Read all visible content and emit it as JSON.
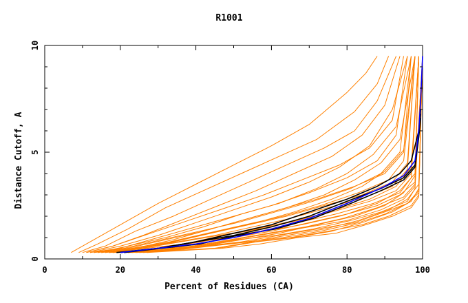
{
  "chart_data": {
    "type": "line",
    "title": "R1001",
    "xlabel": "Percent of Residues (CA)",
    "ylabel": "Distance Cutoff, A",
    "xlim": [
      0,
      100
    ],
    "ylim": [
      0,
      10
    ],
    "x_ticks": [
      "0",
      "20",
      "40",
      "60",
      "80",
      "100"
    ],
    "y_ticks": [
      "0",
      "5",
      "10"
    ],
    "grid": false,
    "legend": "none",
    "colors": {
      "models": "#ff8000",
      "highlight": "#000000",
      "reference": "#0000ff"
    },
    "series_groups": [
      {
        "role": "background",
        "color": "#ff8000",
        "series": [
          {
            "x": [
              7,
              12,
              20,
              30,
              40,
              50,
              60,
              70,
              80,
              85,
              88
            ],
            "y": [
              0.3,
              0.8,
              1.6,
              2.6,
              3.5,
              4.4,
              5.3,
              6.3,
              7.8,
              8.7,
              9.5
            ]
          },
          {
            "x": [
              9,
              14,
              22,
              32,
              42,
              52,
              62,
              72,
              82,
              88,
              91
            ],
            "y": [
              0.3,
              0.7,
              1.4,
              2.4,
              3.2,
              4.0,
              4.8,
              5.6,
              6.9,
              8.2,
              9.5
            ]
          },
          {
            "x": [
              10,
              16,
              24,
              34,
              44,
              54,
              64,
              74,
              82,
              88,
              93
            ],
            "y": [
              0.3,
              0.6,
              1.3,
              2.0,
              2.8,
              3.6,
              4.4,
              5.2,
              6.0,
              7.4,
              9.5
            ]
          },
          {
            "x": [
              11,
              18,
              28,
              38,
              48,
              58,
              68,
              78,
              86,
              92,
              95
            ],
            "y": [
              0.3,
              0.6,
              1.2,
              1.8,
              2.4,
              3.0,
              3.7,
              4.4,
              5.2,
              6.5,
              9.5
            ]
          },
          {
            "x": [
              12,
              20,
              30,
              40,
              50,
              60,
              70,
              80,
              88,
              93,
              96
            ],
            "y": [
              0.3,
              0.5,
              1.0,
              1.5,
              2.0,
              2.5,
              3.1,
              3.8,
              4.6,
              5.8,
              9.5
            ]
          },
          {
            "x": [
              13,
              22,
              32,
              42,
              52,
              62,
              72,
              82,
              90,
              95,
              97
            ],
            "y": [
              0.3,
              0.5,
              0.9,
              1.3,
              1.8,
              2.3,
              2.8,
              3.4,
              4.0,
              5.0,
              9.5
            ]
          },
          {
            "x": [
              14,
              24,
              34,
              44,
              54,
              64,
              74,
              84,
              92,
              96,
              98
            ],
            "y": [
              0.3,
              0.5,
              0.8,
              1.2,
              1.6,
              2.0,
              2.5,
              3.0,
              3.6,
              4.5,
              9.5
            ]
          },
          {
            "x": [
              15,
              25,
              35,
              45,
              55,
              65,
              75,
              85,
              92,
              96,
              98
            ],
            "y": [
              0.3,
              0.5,
              0.8,
              1.1,
              1.5,
              1.9,
              2.4,
              2.9,
              3.4,
              4.2,
              9.5
            ]
          },
          {
            "x": [
              16,
              26,
              36,
              46,
              56,
              66,
              76,
              86,
              93,
              97,
              99
            ],
            "y": [
              0.3,
              0.5,
              0.8,
              1.1,
              1.4,
              1.8,
              2.2,
              2.7,
              3.2,
              4.0,
              9.5
            ]
          },
          {
            "x": [
              17,
              27,
              37,
              47,
              57,
              67,
              77,
              87,
              94,
              97,
              99
            ],
            "y": [
              0.3,
              0.4,
              0.7,
              1.0,
              1.3,
              1.7,
              2.1,
              2.6,
              3.1,
              3.8,
              9.5
            ]
          },
          {
            "x": [
              18,
              28,
              38,
              48,
              58,
              68,
              78,
              88,
              94,
              98,
              99
            ],
            "y": [
              0.3,
              0.4,
              0.7,
              1.0,
              1.3,
              1.6,
              2.0,
              2.5,
              3.0,
              3.6,
              9.5
            ]
          },
          {
            "x": [
              19,
              29,
              39,
              49,
              59,
              69,
              79,
              88,
              95,
              98,
              99
            ],
            "y": [
              0.3,
              0.4,
              0.6,
              0.9,
              1.2,
              1.5,
              1.9,
              2.4,
              2.9,
              3.5,
              9.5
            ]
          },
          {
            "x": [
              20,
              30,
              40,
              50,
              60,
              70,
              80,
              89,
              95,
              98,
              100
            ],
            "y": [
              0.3,
              0.4,
              0.6,
              0.9,
              1.2,
              1.5,
              1.8,
              2.3,
              2.8,
              3.4,
              9.5
            ]
          },
          {
            "x": [
              21,
              31,
              41,
              51,
              61,
              71,
              81,
              89,
              96,
              98,
              100
            ],
            "y": [
              0.3,
              0.4,
              0.6,
              0.9,
              1.1,
              1.4,
              1.8,
              2.2,
              2.7,
              3.3,
              9.5
            ]
          },
          {
            "x": [
              22,
              32,
              42,
              52,
              62,
              72,
              82,
              90,
              96,
              99,
              100
            ],
            "y": [
              0.3,
              0.4,
              0.6,
              0.8,
              1.1,
              1.4,
              1.7,
              2.2,
              2.6,
              3.2,
              9.5
            ]
          },
          {
            "x": [
              23,
              33,
              43,
              53,
              63,
              73,
              83,
              90,
              96,
              99,
              100
            ],
            "y": [
              0.3,
              0.4,
              0.6,
              0.8,
              1.0,
              1.3,
              1.7,
              2.1,
              2.6,
              3.1,
              9.5
            ]
          },
          {
            "x": [
              25,
              35,
              45,
              55,
              65,
              75,
              84,
              91,
              97,
              99,
              100
            ],
            "y": [
              0.3,
              0.4,
              0.5,
              0.8,
              1.0,
              1.3,
              1.6,
              2.0,
              2.5,
              3.0,
              9.5
            ]
          },
          {
            "x": [
              27,
              37,
              47,
              57,
              67,
              77,
              85,
              92,
              97,
              99,
              100
            ],
            "y": [
              0.3,
              0.4,
              0.5,
              0.7,
              1.0,
              1.2,
              1.6,
              2.0,
              2.4,
              2.9,
              9.5
            ]
          },
          {
            "x": [
              12,
              20,
              30,
              40,
              50,
              60,
              70,
              78,
              86,
              92,
              96
            ],
            "y": [
              0.3,
              0.6,
              1.1,
              1.7,
              2.3,
              2.9,
              3.6,
              4.3,
              5.3,
              7.0,
              9.5
            ]
          },
          {
            "x": [
              14,
              22,
              32,
              42,
              52,
              62,
              72,
              80,
              87,
              93,
              97
            ],
            "y": [
              0.3,
              0.6,
              1.0,
              1.5,
              2.1,
              2.6,
              3.3,
              4.0,
              4.9,
              6.2,
              9.5
            ]
          },
          {
            "x": [
              16,
              24,
              34,
              44,
              54,
              64,
              74,
              82,
              89,
              94,
              98
            ],
            "y": [
              0.3,
              0.5,
              0.9,
              1.4,
              1.9,
              2.4,
              3.0,
              3.7,
              4.5,
              5.6,
              9.5
            ]
          },
          {
            "x": [
              18,
              26,
              36,
              46,
              56,
              66,
              76,
              84,
              90,
              95,
              98
            ],
            "y": [
              0.3,
              0.5,
              0.9,
              1.3,
              1.7,
              2.2,
              2.8,
              3.4,
              4.1,
              5.1,
              9.5
            ]
          },
          {
            "x": [
              13,
              21,
              31,
              41,
              51,
              61,
              71,
              81,
              89,
              94,
              97
            ],
            "y": [
              0.3,
              0.5,
              0.9,
              1.3,
              1.7,
              2.2,
              2.7,
              3.3,
              4.0,
              5.0,
              9.5
            ]
          },
          {
            "x": [
              15,
              23,
              33,
              43,
              53,
              63,
              73,
              83,
              91,
              95,
              98
            ],
            "y": [
              0.3,
              0.5,
              0.8,
              1.2,
              1.6,
              2.0,
              2.5,
              3.1,
              3.7,
              4.6,
              9.5
            ]
          },
          {
            "x": [
              20,
              30,
              40,
              50,
              60,
              70,
              80,
              88,
              94,
              98,
              99
            ],
            "y": [
              0.3,
              0.4,
              0.7,
              1.0,
              1.3,
              1.7,
              2.1,
              2.6,
              3.2,
              4.0,
              9.5
            ]
          },
          {
            "x": [
              22,
              32,
              42,
              52,
              62,
              72,
              82,
              90,
              95,
              98,
              99
            ],
            "y": [
              0.3,
              0.4,
              0.6,
              0.9,
              1.2,
              1.6,
              2.0,
              2.5,
              3.1,
              3.9,
              9.5
            ]
          },
          {
            "x": [
              11,
              18,
              26,
              36,
              46,
              56,
              66,
              76,
              84,
              90,
              94
            ],
            "y": [
              0.3,
              0.6,
              1.1,
              1.8,
              2.5,
              3.2,
              4.0,
              4.8,
              5.8,
              7.2,
              9.5
            ]
          },
          {
            "x": [
              24,
              34,
              44,
              54,
              64,
              74,
              83,
              91,
              96,
              99,
              100
            ],
            "y": [
              0.3,
              0.4,
              0.6,
              0.8,
              1.1,
              1.4,
              1.8,
              2.3,
              2.8,
              3.5,
              9.5
            ]
          },
          {
            "x": [
              26,
              36,
              46,
              56,
              66,
              76,
              84,
              92,
              97,
              99,
              100
            ],
            "y": [
              0.3,
              0.4,
              0.5,
              0.8,
              1.0,
              1.3,
              1.7,
              2.2,
              2.7,
              3.3,
              9.5
            ]
          },
          {
            "x": [
              17,
              27,
              37,
              47,
              57,
              67,
              77,
              86,
              93,
              97,
              99
            ],
            "y": [
              0.3,
              0.5,
              0.7,
              1.1,
              1.4,
              1.8,
              2.3,
              2.8,
              3.4,
              4.3,
              9.5
            ]
          }
        ]
      },
      {
        "role": "highlight",
        "color": "#000000",
        "series": [
          {
            "x": [
              19,
              30,
              40,
              50,
              60,
              70,
              80,
              88,
              94,
              97,
              99,
              99.5
            ],
            "y": [
              0.3,
              0.5,
              0.8,
              1.2,
              1.6,
              2.2,
              2.8,
              3.4,
              4.0,
              4.6,
              6.0,
              7.0
            ]
          },
          {
            "x": [
              20,
              30,
              40,
              50,
              60,
              70,
              80,
              89,
              95,
              98,
              99,
              99.5
            ],
            "y": [
              0.3,
              0.5,
              0.8,
              1.1,
              1.5,
              2.0,
              2.7,
              3.3,
              3.8,
              4.4,
              5.8,
              6.8
            ]
          },
          {
            "x": [
              21,
              31,
              41,
              51,
              61,
              71,
              81,
              89,
              95,
              98,
              99,
              99.5
            ],
            "y": [
              0.3,
              0.5,
              0.7,
              1.1,
              1.4,
              1.9,
              2.6,
              3.2,
              3.7,
              4.3,
              5.7,
              6.6
            ]
          }
        ]
      },
      {
        "role": "reference",
        "color": "#0000ff",
        "series": [
          {
            "x": [
              20,
              30,
              40,
              50,
              60,
              70,
              80,
              90,
              95,
              98,
              99,
              99.5,
              100
            ],
            "y": [
              0.3,
              0.5,
              0.7,
              1.0,
              1.4,
              1.9,
              2.6,
              3.4,
              3.9,
              4.6,
              6.0,
              7.5,
              9.5
            ]
          }
        ]
      }
    ]
  }
}
